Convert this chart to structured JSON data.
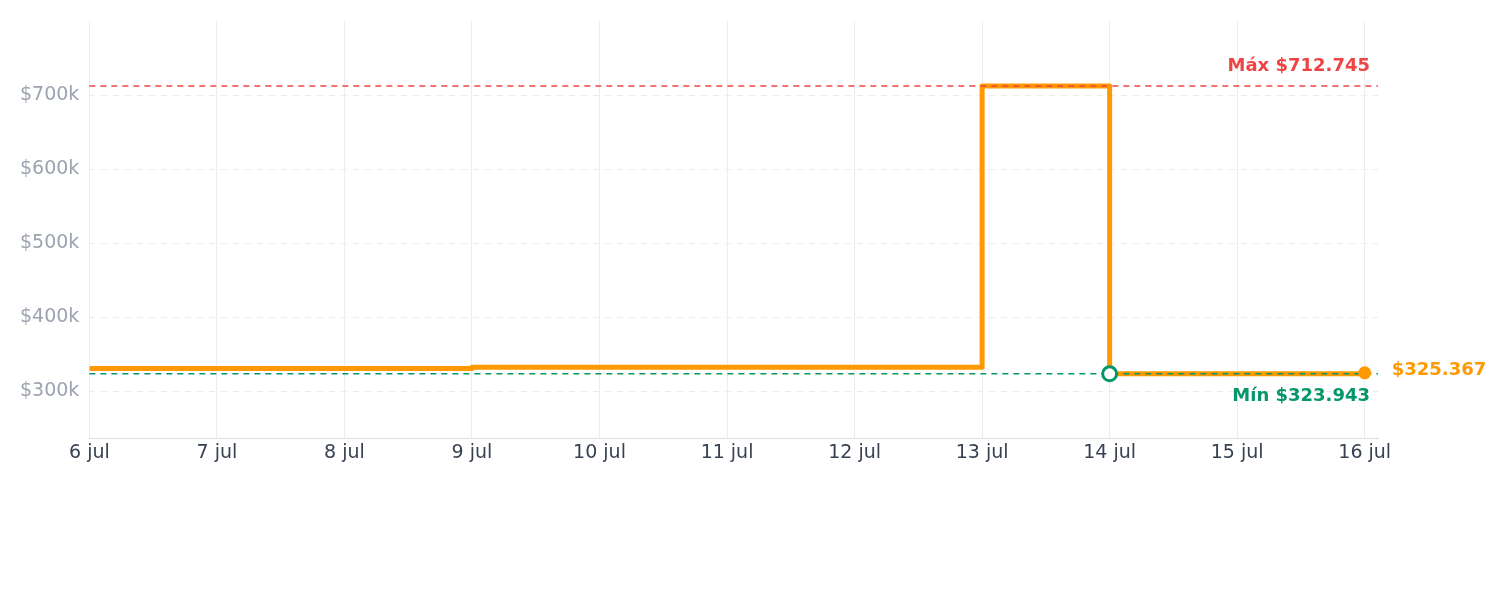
{
  "chart_data": {
    "type": "step",
    "x": [
      "--07-06",
      "--07-09",
      "--07-13",
      "--07-14",
      "--07-16"
    ],
    "series": [
      {
        "color": "#ff9900",
        "values": [
          331000,
          333000,
          712745,
          323943,
          325367
        ],
        "value_labels": [
          null,
          null,
          null,
          null,
          "$325.367"
        ]
      }
    ],
    "xlim": [
      "--07-06",
      "--07-16T02:30"
    ],
    "xticks": [
      {
        "value": "--07-06",
        "label": "6 jul"
      },
      {
        "value": "--07-07",
        "label": "7 jul"
      },
      {
        "value": "--07-08",
        "label": "8 jul"
      },
      {
        "value": "--07-09",
        "label": "9 jul"
      },
      {
        "value": "--07-10",
        "label": "10 jul"
      },
      {
        "value": "--07-11",
        "label": "11 jul"
      },
      {
        "value": "--07-12",
        "label": "12 jul"
      },
      {
        "value": "--07-13",
        "label": "13 jul"
      },
      {
        "value": "--07-14",
        "label": "14 jul"
      },
      {
        "value": "--07-15",
        "label": "15 jul"
      },
      {
        "value": "--07-16",
        "label": "16 jul"
      }
    ],
    "ylim": [
      237000,
      800000
    ],
    "yticks": [
      {
        "value": 300000,
        "label": "$300k"
      },
      {
        "value": 400000,
        "label": "$400k"
      },
      {
        "value": 500000,
        "label": "$500k"
      },
      {
        "value": 600000,
        "label": "$600k"
      },
      {
        "value": 700000,
        "label": "$700k"
      }
    ],
    "ref_lines": [
      {
        "axis": "y",
        "value": 712745,
        "label": "Máx $712.745",
        "color": "#ef4444",
        "line_style": "dashed"
      },
      {
        "axis": "y",
        "value": 323943,
        "label": "Mín $323.943",
        "color": "#059669",
        "line_style": "dashed"
      }
    ],
    "grid": true,
    "legend": false,
    "marker": "none",
    "line_style": "solid"
  }
}
